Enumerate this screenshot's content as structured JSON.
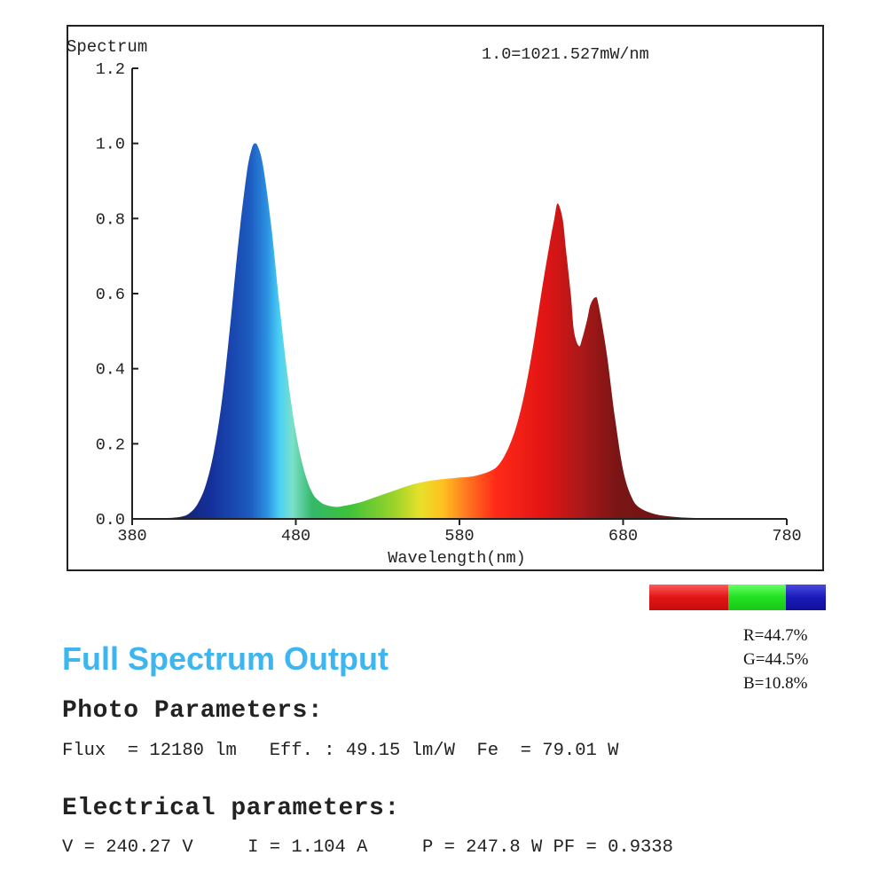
{
  "chart_data": {
    "type": "area",
    "title": "Spectrum",
    "note": "1.0=1021.527mW/nm",
    "xlabel": "Wavelength(nm)",
    "ylabel": "Spectrum",
    "xlim": [
      380,
      780
    ],
    "ylim": [
      0,
      1.2
    ],
    "xticks": [
      "380",
      "480",
      "580",
      "680",
      "780"
    ],
    "yticks": [
      "0.0",
      "0.2",
      "0.4",
      "0.6",
      "0.8",
      "1.0",
      "1.2"
    ],
    "x": [
      380,
      400,
      410,
      415,
      420,
      425,
      430,
      435,
      440,
      445,
      450,
      453,
      455,
      457,
      460,
      465,
      470,
      475,
      480,
      485,
      490,
      495,
      500,
      505,
      510,
      520,
      530,
      540,
      550,
      560,
      570,
      580,
      590,
      600,
      605,
      610,
      615,
      620,
      625,
      630,
      635,
      638,
      640,
      643,
      645,
      648,
      650,
      653,
      655,
      658,
      660,
      663,
      665,
      670,
      675,
      680,
      685,
      690,
      700,
      710,
      720,
      740,
      760,
      780
    ],
    "y": [
      0.0,
      0.002,
      0.006,
      0.015,
      0.04,
      0.09,
      0.18,
      0.32,
      0.52,
      0.74,
      0.92,
      0.985,
      1.0,
      0.99,
      0.94,
      0.78,
      0.57,
      0.38,
      0.23,
      0.13,
      0.07,
      0.045,
      0.035,
      0.032,
      0.035,
      0.045,
      0.06,
      0.075,
      0.09,
      0.1,
      0.106,
      0.11,
      0.115,
      0.13,
      0.15,
      0.19,
      0.25,
      0.34,
      0.46,
      0.6,
      0.73,
      0.8,
      0.84,
      0.8,
      0.72,
      0.6,
      0.5,
      0.46,
      0.48,
      0.53,
      0.57,
      0.59,
      0.57,
      0.44,
      0.27,
      0.13,
      0.06,
      0.03,
      0.012,
      0.006,
      0.003,
      0.001,
      0.0,
      0.0
    ]
  },
  "rgb_ratio": {
    "r_value": 44.7,
    "g_value": 44.5,
    "b_value": 10.8,
    "r_label": "R=44.7%",
    "g_label": "G=44.5%",
    "b_label": "B=10.8%",
    "r_color": "#e01515",
    "g_color": "#22e022",
    "b_color": "#1a1ab8"
  },
  "heading": "Full Spectrum Output",
  "photo": {
    "heading": "Photo Parameters:",
    "line": "Flux  = 12180 lm   Eff. : 49.15 lm/W  Fe  = 79.01 W"
  },
  "electrical": {
    "heading": "Electrical parameters:",
    "line": "V = 240.27 V     I = 1.104 A     P = 247.8 W PF = 0.9338"
  },
  "colors": {
    "accent": "#3db5ee"
  }
}
